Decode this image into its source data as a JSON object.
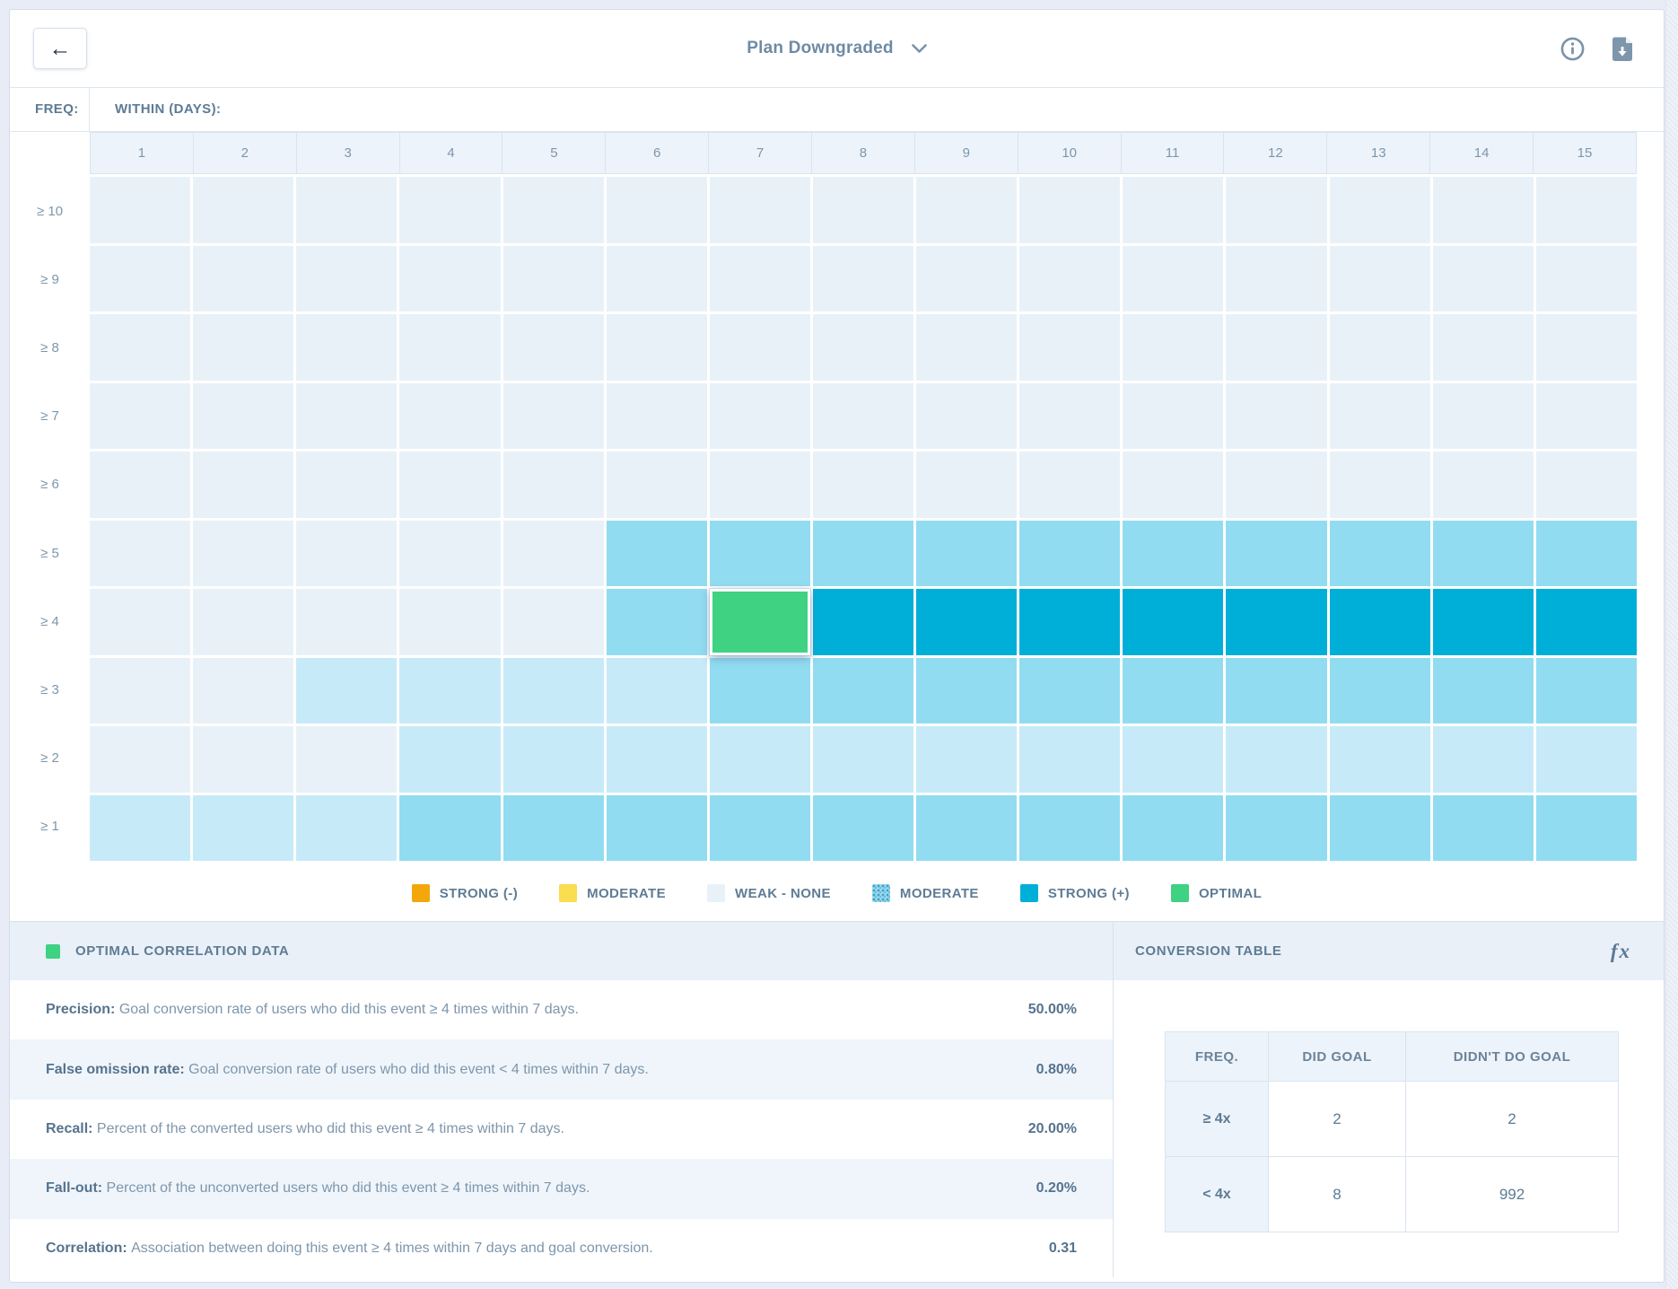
{
  "header": {
    "title": "Plan Downgraded",
    "back_icon": "arrow-left",
    "info_icon": "info-circle",
    "download_icon": "download-document"
  },
  "grid": {
    "freq_label": "FREQ:",
    "within_label": "WITHIN (DAYS):",
    "columns": [
      "1",
      "2",
      "3",
      "4",
      "5",
      "6",
      "7",
      "8",
      "9",
      "10",
      "11",
      "12",
      "13",
      "14",
      "15"
    ],
    "level_colors": {
      "w": "#e9f1f8",
      "l": "#c7eaf8",
      "m": "#92dcf1",
      "s": "#00afd8",
      "o": "#3ed282"
    },
    "rows": [
      {
        "label": "≥ 10",
        "cells": "wwwwwwwwwwwwwww"
      },
      {
        "label": "≥ 9",
        "cells": "wwwwwwwwwwwwwww"
      },
      {
        "label": "≥ 8",
        "cells": "wwwwwwwwwwwwwww"
      },
      {
        "label": "≥ 7",
        "cells": "wwwwwwwwwwwwwww"
      },
      {
        "label": "≥ 6",
        "cells": "wwwwwwwwwwwwwww"
      },
      {
        "label": "≥ 5",
        "cells": "wwwwwmmmmmmmmmm"
      },
      {
        "label": "≥ 4",
        "cells": "wwwwwmossssssss"
      },
      {
        "label": "≥ 3",
        "cells": "wwllllmmmmmmmmm"
      },
      {
        "label": "≥ 2",
        "cells": "wwwllllllllllll"
      },
      {
        "label": "≥ 1",
        "cells": "lllmmmmmmmmmmmm"
      }
    ],
    "selected_cell": {
      "row": "≥ 4",
      "column": "7",
      "level": "optimal"
    }
  },
  "legend": {
    "items": [
      {
        "label": "STRONG (-)",
        "swatch": "strong-negative",
        "color": "#f3a70d",
        "hatched": false
      },
      {
        "label": "MODERATE",
        "swatch": "moderate-negative",
        "color": "#fadd51",
        "hatched": false
      },
      {
        "label": "WEAK - NONE",
        "swatch": "weak-none",
        "color": "#e9f1f8",
        "hatched": false
      },
      {
        "label": "MODERATE",
        "swatch": "moderate-positive-hatched",
        "color": "#9fdff2",
        "hatched": true
      },
      {
        "label": "STRONG (+)",
        "swatch": "strong-positive",
        "color": "#00afd8",
        "hatched": false
      },
      {
        "label": "OPTIMAL",
        "swatch": "optimal",
        "color": "#3ed282",
        "hatched": false
      }
    ]
  },
  "optimal_panel": {
    "title": "OPTIMAL CORRELATION DATA",
    "swatch_color": "#3ed282",
    "metrics": [
      {
        "name": "Precision:",
        "description": "Goal conversion rate of users who did this event ≥ 4 times within 7 days.",
        "value": "50.00%"
      },
      {
        "name": "False omission rate:",
        "description": "Goal conversion rate of users who did this event < 4 times within 7 days.",
        "value": "0.80%"
      },
      {
        "name": "Recall:",
        "description": "Percent of the converted users who did this event ≥ 4 times within 7 days.",
        "value": "20.00%"
      },
      {
        "name": "Fall-out:",
        "description": "Percent of the unconverted users who did this event ≥ 4 times within 7 days.",
        "value": "0.20%"
      },
      {
        "name": "Correlation:",
        "description": "Association between doing this event ≥ 4 times within 7 days and goal conversion.",
        "value": "0.31"
      }
    ]
  },
  "conversion_panel": {
    "title": "CONVERSION TABLE",
    "fx_label": "fx",
    "headers": [
      "FREQ.",
      "DID GOAL",
      "DIDN'T DO GOAL"
    ],
    "rows": [
      {
        "freq": "≥ 4x",
        "did_goal": "2",
        "didnt_do_goal": "2"
      },
      {
        "freq": "< 4x",
        "did_goal": "8",
        "didnt_do_goal": "992"
      }
    ]
  }
}
